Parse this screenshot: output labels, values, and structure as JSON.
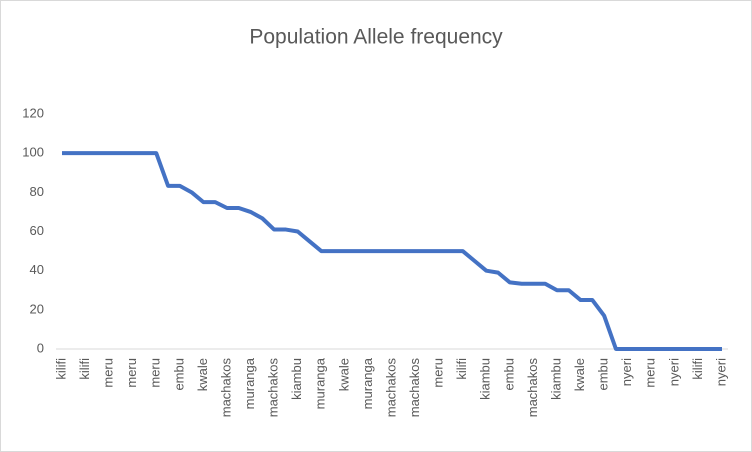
{
  "chart_data": {
    "type": "line",
    "title": "Population Allele frequency",
    "categories": [
      "kilifi",
      null,
      "kilifi",
      null,
      "meru",
      null,
      "meru",
      null,
      "meru",
      null,
      "embu",
      null,
      "kwale",
      null,
      "machakos",
      null,
      "muranga",
      null,
      "machakos",
      null,
      "kiambu",
      null,
      "muranga",
      null,
      "kwale",
      null,
      "muranga",
      null,
      "machakos",
      null,
      "machakos",
      null,
      "meru",
      null,
      "kilifi",
      null,
      "kiambu",
      null,
      "embu",
      null,
      "machakos",
      null,
      "kiambu",
      null,
      "kwale",
      null,
      "embu",
      null,
      "nyeri",
      null,
      "meru",
      null,
      "nyeri",
      null,
      "kilifi",
      null,
      "nyeri"
    ],
    "series": [
      {
        "name": "Population Allele frequency",
        "color": "#4472c4",
        "values": [
          100,
          100,
          100,
          100,
          100,
          100,
          100,
          100,
          100,
          83.3,
          83.3,
          80,
          75,
          75,
          72,
          72,
          70,
          66.7,
          61,
          61,
          60,
          55,
          50,
          50,
          50,
          50,
          50,
          50,
          50,
          50,
          50,
          50,
          50,
          50,
          50,
          45,
          40,
          39,
          34,
          33.3,
          33.3,
          33.3,
          30,
          30,
          25,
          25,
          17,
          0,
          0,
          0,
          0,
          0,
          0,
          0,
          0,
          0,
          0
        ]
      }
    ],
    "ylim": [
      0,
      120
    ],
    "yticks": [
      0,
      20,
      40,
      60,
      80,
      100,
      120
    ],
    "grid": false
  }
}
